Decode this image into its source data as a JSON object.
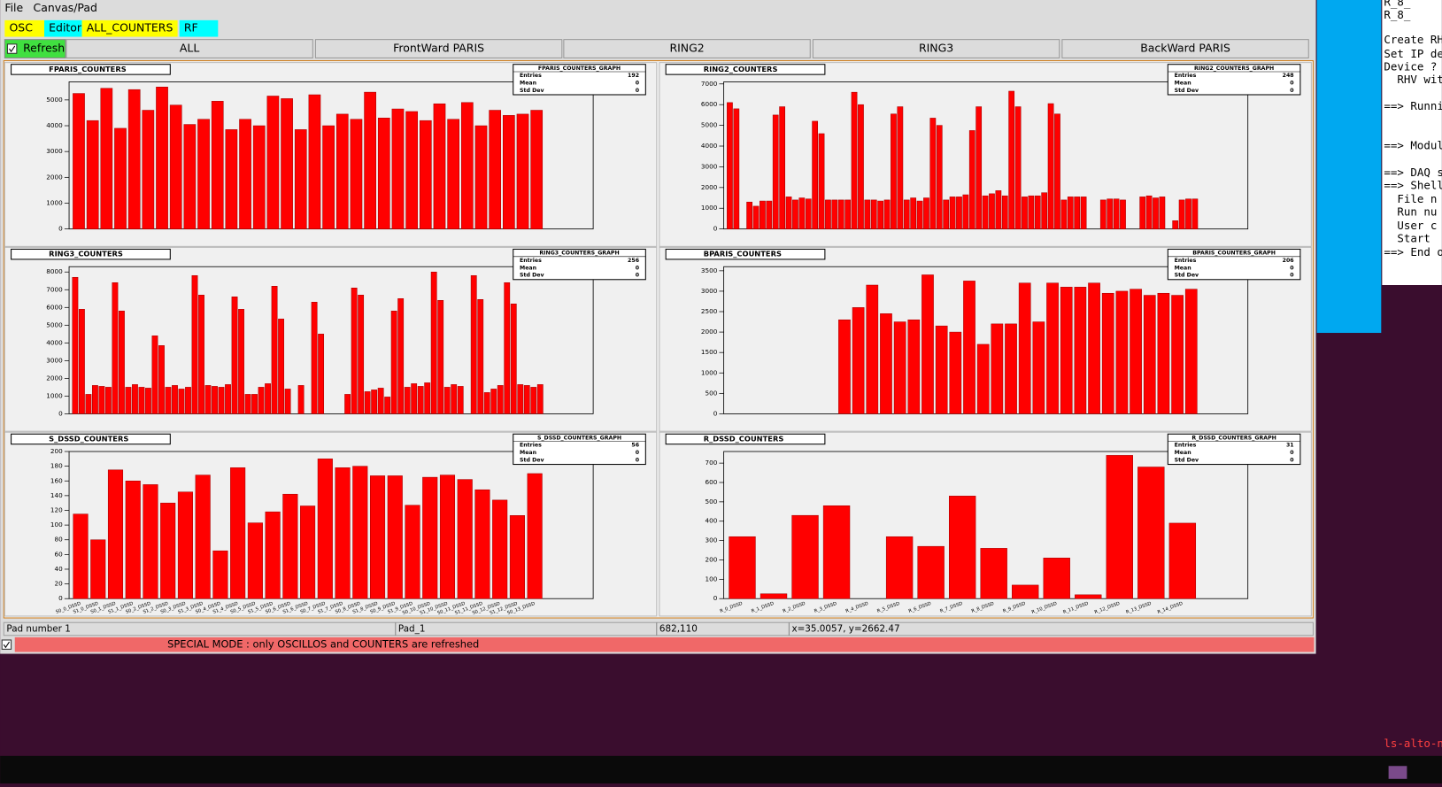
{
  "menu": [
    "File",
    "Canvas/Pad"
  ],
  "tabs": [
    "OSC",
    "Editor",
    "ALL_COUNTERS",
    "RF"
  ],
  "refresh": "Refresh",
  "subtabs": [
    "ALL",
    "FrontWard PARIS",
    "RING2",
    "RING3",
    "BackWard PARIS"
  ],
  "chart_data": [
    {
      "type": "bar",
      "title": "FPARIS_COUNTERS",
      "stats_title": "FPARIS_COUNTERS_GRAPH",
      "stats": [
        {
          "label": "Entries",
          "value": 192
        },
        {
          "label": "Mean",
          "value": 0
        },
        {
          "label": "Std Dev",
          "value": 0
        }
      ],
      "color": "#ff0000",
      "ylim": [
        0,
        5700
      ],
      "yticks": [
        0,
        1000,
        2000,
        3000,
        4000,
        5000
      ],
      "categories": [
        null,
        null,
        null,
        null,
        null,
        null,
        null,
        null,
        null,
        null,
        null,
        null,
        null,
        null,
        null,
        null,
        null,
        null,
        null,
        null,
        null,
        null,
        null,
        null,
        null,
        null,
        null,
        null,
        null,
        null,
        null,
        null,
        null,
        null
      ],
      "values": [
        5250,
        4200,
        5450,
        3900,
        5400,
        4600,
        5500,
        4800,
        4050,
        4250,
        4950,
        3850,
        4250,
        4000,
        5150,
        5050,
        3850,
        5200,
        4000,
        4450,
        4250,
        5300,
        4300,
        4650,
        4550,
        4200,
        4850,
        4250,
        4900,
        4000,
        4600,
        4400,
        4450,
        4600
      ]
    },
    {
      "type": "bar",
      "title": "RING2_COUNTERS",
      "stats_title": "RING2_COUNTERS_GRAPH",
      "stats": [
        {
          "label": "Entries",
          "value": 248
        },
        {
          "label": "Mean",
          "value": 0
        },
        {
          "label": "Std Dev",
          "value": 0
        }
      ],
      "color": "#ff0000",
      "ylim": [
        0,
        7100
      ],
      "yticks": [
        0,
        1000,
        2000,
        3000,
        4000,
        5000,
        6000,
        7000
      ],
      "categories": [
        null,
        null,
        null,
        null,
        null,
        null,
        null,
        null,
        null,
        null,
        null,
        null,
        null,
        null,
        null,
        null,
        null,
        null,
        null,
        null,
        null,
        null,
        null,
        null,
        null,
        null,
        null,
        null,
        null,
        null,
        null,
        null,
        null,
        null,
        null,
        null,
        null,
        null,
        null,
        null,
        null,
        null,
        null,
        null,
        null,
        null,
        null,
        null,
        null,
        null,
        null,
        null,
        null,
        null,
        null,
        null,
        null,
        null,
        null,
        null,
        null,
        null,
        null,
        null,
        null,
        null,
        null,
        null,
        null,
        null,
        null,
        null
      ],
      "values": [
        6100,
        5800,
        0,
        1300,
        1100,
        1350,
        1350,
        5500,
        5900,
        1550,
        1400,
        1500,
        1450,
        5200,
        4600,
        1400,
        1400,
        1400,
        1400,
        6600,
        6000,
        1400,
        1400,
        1350,
        1400,
        5550,
        5900,
        1400,
        1500,
        1350,
        1500,
        5350,
        5000,
        1400,
        1550,
        1550,
        1650,
        4750,
        5900,
        1600,
        1700,
        1850,
        1600,
        6650,
        5900,
        1550,
        1600,
        1600,
        1750,
        6050,
        5550,
        1400,
        1550,
        1550,
        1550,
        0,
        0,
        1400,
        1450,
        1450,
        1400,
        0,
        0,
        1550,
        1600,
        1500,
        1550,
        0,
        400,
        1400,
        1450,
        1450
      ]
    },
    {
      "type": "bar",
      "title": "RING3_COUNTERS",
      "stats_title": "RING3_COUNTERS_GRAPH",
      "stats": [
        {
          "label": "Entries",
          "value": 256
        },
        {
          "label": "Mean",
          "value": 0
        },
        {
          "label": "Std Dev",
          "value": 0
        }
      ],
      "color": "#ff0000",
      "ylim": [
        0,
        8300
      ],
      "yticks": [
        0,
        1000,
        2000,
        3000,
        4000,
        5000,
        6000,
        7000,
        8000
      ],
      "categories": [
        null,
        null,
        null,
        null,
        null,
        null,
        null,
        null,
        null,
        null,
        null,
        null,
        null,
        null,
        null,
        null,
        null,
        null,
        null,
        null,
        null,
        null,
        null,
        null,
        null,
        null,
        null,
        null,
        null,
        null,
        null,
        null,
        null,
        null,
        null,
        null,
        null,
        null,
        null,
        null,
        null,
        null,
        null,
        null,
        null,
        null,
        null,
        null,
        null,
        null,
        null,
        null,
        null,
        null,
        null,
        null,
        null,
        null,
        null,
        null,
        null,
        null,
        null,
        null,
        null,
        null,
        null,
        null,
        null,
        null,
        null
      ],
      "values": [
        7700,
        5900,
        1100,
        1600,
        1550,
        1500,
        7400,
        5800,
        1500,
        1650,
        1500,
        1450,
        4400,
        3850,
        1500,
        1600,
        1400,
        1500,
        7800,
        6700,
        1600,
        1550,
        1500,
        1650,
        6600,
        5900,
        1100,
        1100,
        1500,
        1700,
        7200,
        5350,
        1400,
        0,
        1600,
        0,
        6300,
        4500,
        0,
        0,
        0,
        1100,
        7100,
        6700,
        1250,
        1350,
        1450,
        950,
        5800,
        6500,
        1500,
        1700,
        1550,
        1750,
        8000,
        6400,
        1500,
        1650,
        1550,
        0,
        7800,
        6450,
        1200,
        1400,
        1600,
        7400,
        6200,
        1650,
        1600,
        1500,
        1650
      ]
    },
    {
      "type": "bar",
      "title": "BPARIS_COUNTERS",
      "stats_title": "BPARIS_COUNTERS_GRAPH",
      "stats": [
        {
          "label": "Entries",
          "value": 206
        },
        {
          "label": "Mean",
          "value": 0
        },
        {
          "label": "Std Dev",
          "value": 0
        }
      ],
      "color": "#ff0000",
      "ylim": [
        0,
        3600
      ],
      "yticks": [
        0,
        500,
        1000,
        1500,
        2000,
        2500,
        3000,
        3500
      ],
      "categories": [
        null,
        null,
        null,
        null,
        null,
        null,
        null,
        null,
        null,
        null,
        null,
        null,
        null,
        null,
        null,
        null,
        null,
        null,
        null,
        null,
        null,
        null,
        null,
        null,
        null,
        null,
        null,
        null,
        null,
        null,
        null,
        null,
        null,
        null
      ],
      "values": [
        0,
        0,
        0,
        0,
        0,
        0,
        0,
        0,
        2300,
        2600,
        3150,
        2450,
        2250,
        2300,
        3400,
        2150,
        2000,
        3250,
        1700,
        2200,
        2200,
        3200,
        2250,
        3200,
        3100,
        3100,
        3200,
        2950,
        3000,
        3050,
        2900,
        2950,
        2900,
        3050
      ]
    },
    {
      "type": "bar",
      "title": "S_DSSD_COUNTERS",
      "stats_title": "S_DSSD_COUNTERS_GRAPH",
      "stats": [
        {
          "label": "Entries",
          "value": 56
        },
        {
          "label": "Mean",
          "value": 0
        },
        {
          "label": "Std Dev",
          "value": 0
        }
      ],
      "color": "#ff0000",
      "ylim": [
        0,
        200
      ],
      "yticks": [
        0,
        20,
        40,
        60,
        80,
        100,
        120,
        140,
        160,
        180,
        200
      ],
      "categories": [
        "S0_0_DSSD",
        "S1_0_DSSD",
        "S0_1_DSSD",
        "S1_1_DSSD",
        "S0_2_DSSD",
        "S1_2_DSSD",
        "S0_3_DSSD",
        "S1_3_DSSD",
        "S0_4_DSSD",
        "S1_4_DSSD",
        "S0_5_DSSD",
        "S1_5_DSSD",
        "S0_6_DSSD",
        "S1_6_DSSD",
        "S0_7_DSSD",
        "S1_7_DSSD",
        "S0_8_DSSD",
        "S1_8_DSSD",
        "S0_9_DSSD",
        "S1_9_DSSD",
        "S0_10_DSSD",
        "S1_10_DSSD",
        "S0_11_DSSD",
        "S1_11_DSSD",
        "S0_12_DSSD",
        "S1_12_DSSD",
        "S0_13_DSSD"
      ],
      "values": [
        115,
        80,
        175,
        160,
        155,
        130,
        145,
        168,
        65,
        178,
        103,
        118,
        142,
        126,
        190,
        178,
        180,
        167,
        167,
        127,
        165,
        168,
        162,
        148,
        134,
        113,
        170
      ]
    },
    {
      "type": "bar",
      "title": "R_DSSD_COUNTERS",
      "stats_title": "R_DSSD_COUNTERS_GRAPH",
      "stats": [
        {
          "label": "Entries",
          "value": 31
        },
        {
          "label": "Mean",
          "value": 0
        },
        {
          "label": "Std Dev",
          "value": 0
        }
      ],
      "color": "#ff0000",
      "ylim": [
        0,
        760
      ],
      "yticks": [
        0,
        100,
        200,
        300,
        400,
        500,
        600,
        700
      ],
      "categories": [
        "R_0_DSSD",
        "R_1_DSSD",
        "R_2_DSSD",
        "R_3_DSSD",
        "R_4_DSSD",
        "R_5_DSSD",
        "R_6_DSSD",
        "R_7_DSSD",
        "R_8_DSSD",
        "R_9_DSSD",
        "R_10_DSSD",
        "R_11_DSSD",
        "R_12_DSSD",
        "R_13_DSSD",
        "R_14_DSSD"
      ],
      "values": [
        320,
        25,
        430,
        480,
        0,
        320,
        270,
        530,
        260,
        70,
        210,
        20,
        740,
        680,
        390
      ]
    }
  ],
  "status": [
    "Pad number 1",
    "Pad_1",
    "682,110",
    "x=35.0057, y=2662.47"
  ],
  "mode": "SPECIAL MODE : only OSCILLOS and COUNTERS are refreshed",
  "terminal": [
    "R_8_",
    "R_8_",
    "Create RH",
    "Set IP dev",
    "Device ? (",
    "  RHV wit",
    "==> Runnin",
    "==> Module",
    "==> DAQ st",
    "==> Shell",
    "  File n",
    "  Run nu",
    "  User c",
    "  Start",
    "==> End of"
  ],
  "terminal_prompt": "ls-alto-n"
}
